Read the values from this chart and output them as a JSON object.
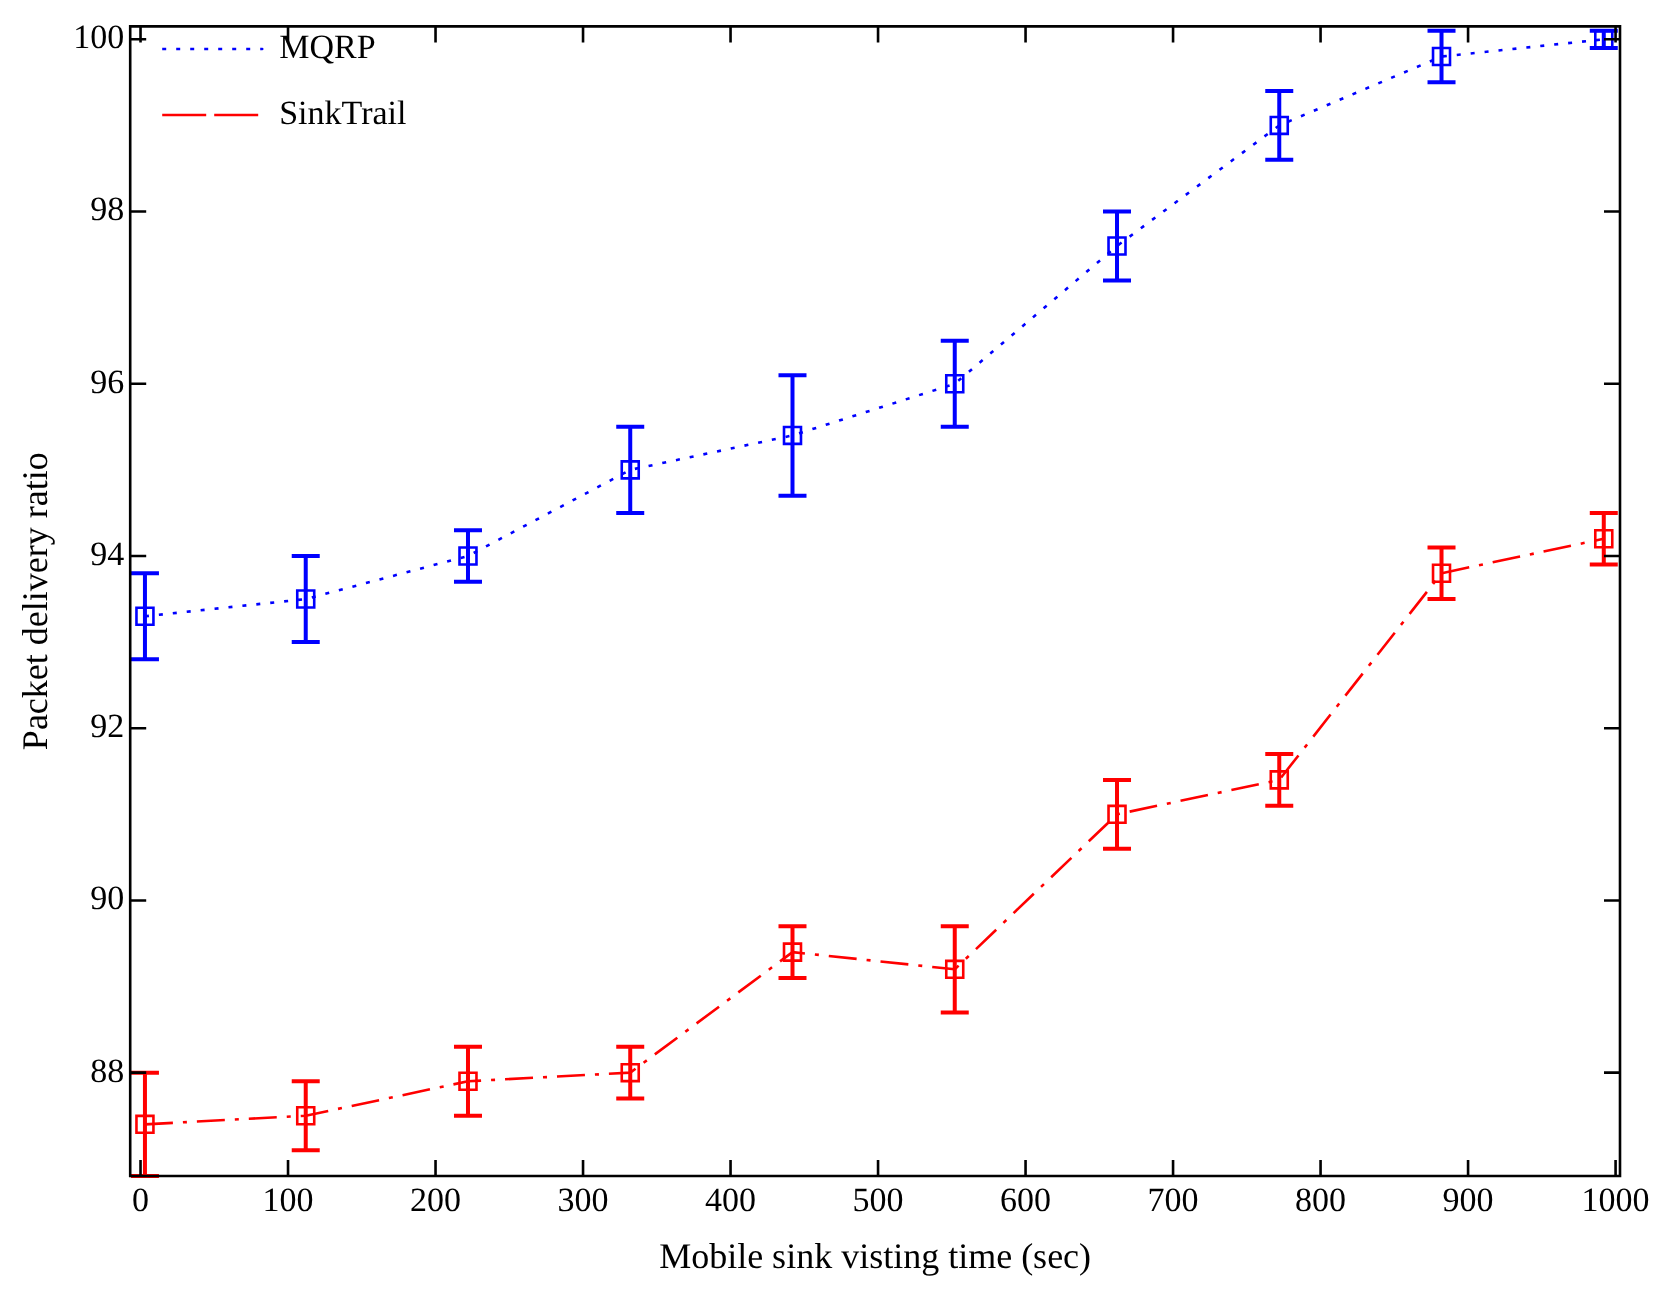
{
  "chart_data": {
    "type": "line",
    "xlabel": "Mobile sink visting time (sec)",
    "ylabel": "Packet delivery ratio",
    "x": [
      3,
      112,
      222,
      332,
      442,
      552,
      662,
      772,
      882,
      992
    ],
    "series": [
      {
        "name": "MQRP",
        "color": "#0000ff",
        "line_style": "dotted",
        "values": [
          93.3,
          93.5,
          94.0,
          95.0,
          95.4,
          96.0,
          97.6,
          99.0,
          99.8,
          100.0
        ],
        "errors": [
          0.5,
          0.5,
          0.3,
          0.5,
          0.7,
          0.5,
          0.4,
          0.4,
          0.3,
          0.1
        ]
      },
      {
        "name": "SinkTrail",
        "color": "#ff0000",
        "line_style": "dashdot",
        "values": [
          87.4,
          87.5,
          87.9,
          88.0,
          89.4,
          89.2,
          91.0,
          91.4,
          93.8,
          94.2
        ],
        "errors": [
          0.6,
          0.4,
          0.4,
          0.3,
          0.3,
          0.5,
          0.4,
          0.3,
          0.3,
          0.3
        ]
      }
    ],
    "marker": "square",
    "xlim": [
      -7,
      1003
    ],
    "ylim": [
      86.8,
      100.15
    ],
    "xticks": [
      0,
      100,
      200,
      300,
      400,
      500,
      600,
      700,
      800,
      900,
      1000
    ],
    "yticks": [
      88,
      90,
      92,
      94,
      96,
      98,
      100
    ],
    "grid": false,
    "legend": "top left"
  }
}
